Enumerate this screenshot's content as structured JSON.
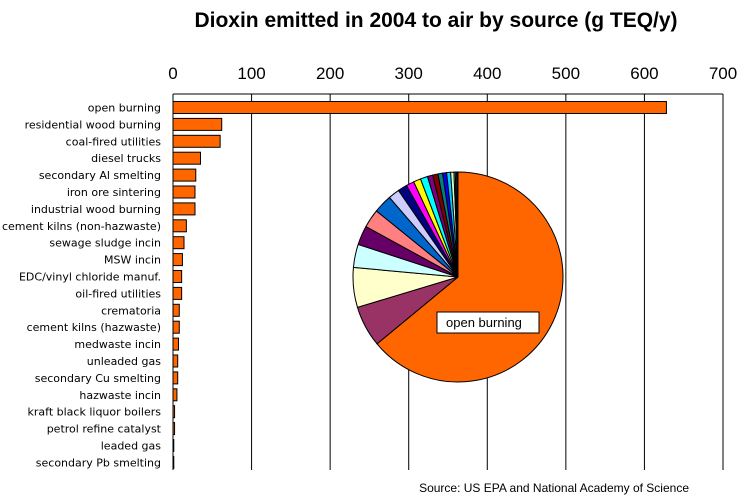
{
  "chart_data": {
    "type": "bar",
    "orientation": "horizontal",
    "title": "Dioxin emitted in 2004 to air by source   (g TEQ/y)",
    "source": "Source:  US EPA and National Academy of Science",
    "xlim": [
      0,
      700
    ],
    "xticks": [
      "0",
      "100",
      "200",
      "300",
      "400",
      "500",
      "600",
      "700"
    ],
    "grid": true,
    "bar_color": "#ff6600",
    "categories": [
      "open burning",
      "residential wood burning",
      "coal-fired utilities",
      "diesel trucks",
      "secondary Al smelting",
      "iron ore sintering",
      "industrial wood burning",
      "cement kilns (non-hazwaste)",
      "sewage sludge incin",
      "MSW incin",
      "EDC/vinyl chloride manuf.",
      "oil-fired utilities",
      "crematoria",
      "cement kilns (hazwaste)",
      "medwaste incin",
      "unleaded gas",
      "secondary Cu smelting",
      "hazwaste incin",
      "kraft black liquor boilers",
      "petrol refine catalyst",
      "leaded gas",
      "secondary Pb smelting"
    ],
    "values": [
      628,
      62,
      60,
      35,
      29,
      28,
      28,
      17,
      14,
      12,
      11,
      11,
      8,
      8,
      7,
      6,
      6,
      5,
      2,
      2,
      1,
      1
    ],
    "inset_pie": {
      "type": "pie",
      "label": "open burning",
      "slice_colors": [
        "#ff6600",
        "#993366",
        "#ffffcc",
        "#ccffff",
        "#660066",
        "#ff8080",
        "#0066cc",
        "#ccccff",
        "#000080",
        "#ff00ff",
        "#ffff00",
        "#00ffff",
        "#800080",
        "#800000",
        "#008080",
        "#0000ff",
        "#00ccff",
        "#ccffcc",
        "#ffff99",
        "#99ccff",
        "#ff99cc",
        "#cc99ff"
      ]
    }
  }
}
